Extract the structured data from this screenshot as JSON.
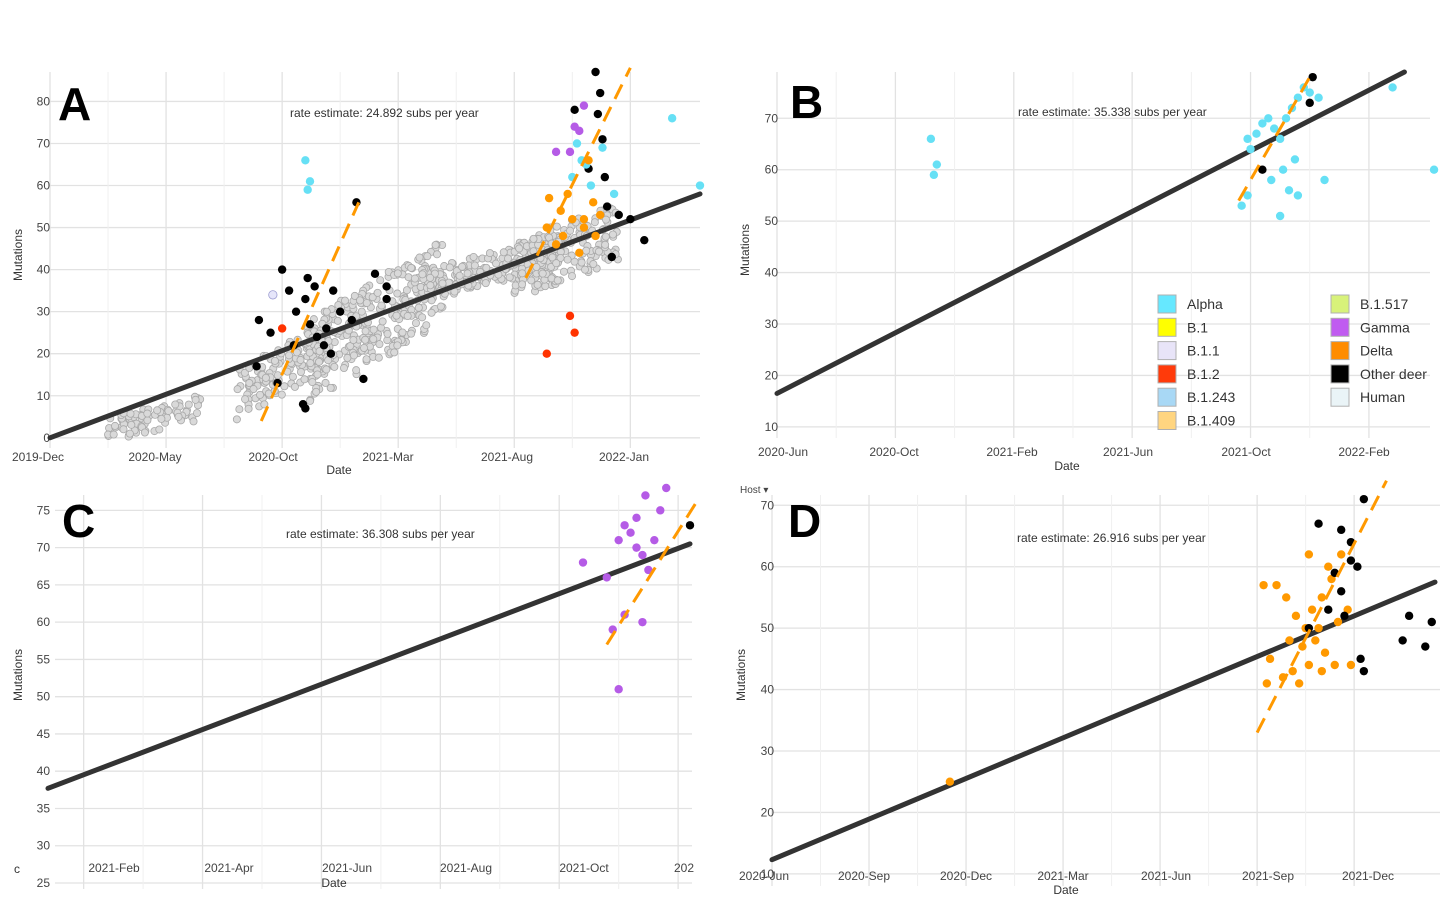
{
  "chart_data": [
    {
      "panel": "A",
      "type": "scatter",
      "xlabel": "Date",
      "ylabel": "Mutations",
      "rate_text": "rate estimate: 24.892 subs per year",
      "x_ticks": [
        "2019-Dec",
        "2020-May",
        "2020-Oct",
        "2021-Mar",
        "2021-Aug",
        "2022-Jan"
      ],
      "y_ticks": [
        0,
        10,
        20,
        30,
        40,
        50,
        60,
        70,
        80
      ],
      "xlim": [
        0,
        28
      ],
      "ylim": [
        -1,
        87
      ],
      "regression": {
        "from": [
          0,
          0
        ],
        "to": [
          28,
          58
        ]
      },
      "dashed_lines": [
        {
          "from": [
            9.1,
            4
          ],
          "to": [
            13.3,
            56
          ]
        },
        {
          "from": [
            20.5,
            38
          ],
          "to": [
            25.0,
            88
          ]
        }
      ],
      "human_cloud": {
        "color": "#d9d9d9",
        "stroke": "#a8a8a8"
      },
      "series": [
        {
          "name": "Other deer",
          "color": "#000000",
          "values": [
            [
              9.0,
              28
            ],
            [
              9.5,
              25
            ],
            [
              10,
              40
            ],
            [
              10.3,
              35
            ],
            [
              10.6,
              30
            ],
            [
              11,
              33
            ],
            [
              11.2,
              27
            ],
            [
              11.5,
              24
            ],
            [
              11.8,
              22
            ],
            [
              10.5,
              22
            ],
            [
              11.1,
              38
            ],
            [
              12.2,
              35
            ],
            [
              12.5,
              30
            ],
            [
              9.8,
              13
            ],
            [
              10.9,
              8
            ],
            [
              11,
              7
            ],
            [
              11.4,
              36
            ],
            [
              13,
              28
            ],
            [
              14,
              39
            ],
            [
              14.5,
              36
            ],
            [
              14.5,
              33
            ],
            [
              13.5,
              14
            ],
            [
              11.9,
              26
            ],
            [
              12.1,
              20
            ],
            [
              13.2,
              56
            ],
            [
              8.9,
              17
            ],
            [
              23.5,
              87
            ],
            [
              23.7,
              82
            ],
            [
              23.6,
              77
            ],
            [
              23.8,
              71
            ],
            [
              24.5,
              53
            ],
            [
              25,
              52
            ],
            [
              25.6,
              47
            ],
            [
              24.0,
              55
            ],
            [
              23.9,
              62
            ],
            [
              23.2,
              64
            ],
            [
              22.6,
              78
            ],
            [
              24.2,
              43
            ]
          ]
        },
        {
          "name": "Alpha",
          "color": "#66e0f5",
          "values": [
            [
              11,
              66
            ],
            [
              11.2,
              61
            ],
            [
              11.1,
              59
            ],
            [
              22.7,
              70
            ],
            [
              22.9,
              66
            ],
            [
              23.1,
              65
            ],
            [
              23.3,
              60
            ],
            [
              22.5,
              62
            ],
            [
              23.8,
              69
            ],
            [
              26.8,
              76
            ],
            [
              28,
              60
            ],
            [
              24.3,
              58
            ]
          ]
        },
        {
          "name": "Gamma",
          "color": "#b55be6",
          "values": [
            [
              22.6,
              74
            ],
            [
              22.8,
              73
            ],
            [
              22.4,
              68
            ],
            [
              23.0,
              79
            ],
            [
              21.8,
              68
            ]
          ]
        },
        {
          "name": "Delta",
          "color": "#ff9900",
          "values": [
            [
              21.5,
              57
            ],
            [
              22,
              54
            ],
            [
              22.5,
              52
            ],
            [
              23,
              50
            ],
            [
              23.5,
              48
            ],
            [
              22.3,
              58
            ],
            [
              21.8,
              46
            ],
            [
              22.8,
              44
            ],
            [
              23.4,
              56
            ],
            [
              23.2,
              66
            ],
            [
              22.1,
              48
            ],
            [
              23.0,
              52
            ],
            [
              21.4,
              50
            ],
            [
              23.7,
              53
            ]
          ]
        },
        {
          "name": "B.1.2",
          "color": "#ff3300",
          "values": [
            [
              22.4,
              29
            ],
            [
              22.6,
              25
            ],
            [
              21.4,
              20
            ],
            [
              10,
              26
            ]
          ]
        },
        {
          "name": "B.1.1",
          "color": "#e6e6fa",
          "values": [
            [
              9.6,
              34
            ]
          ]
        }
      ]
    },
    {
      "panel": "B",
      "type": "scatter",
      "xlabel": "Date",
      "ylabel": "Mutations",
      "rate_text": "rate estimate: 35.338 subs per year",
      "x_ticks": [
        "2020-Jun",
        "2020-Oct",
        "2021-Feb",
        "2021-Jun",
        "2021-Oct",
        "2022-Feb"
      ],
      "y_ticks": [
        10,
        20,
        30,
        40,
        50,
        60,
        70
      ],
      "xlim": [
        0,
        22.3
      ],
      "ylim": [
        9,
        79
      ],
      "regression": {
        "from": [
          0,
          16.5
        ],
        "to": [
          21.2,
          79
        ]
      },
      "dashed_lines": [
        {
          "from": [
            15.6,
            54
          ],
          "to": [
            18.0,
            78
          ]
        }
      ],
      "series": [
        {
          "name": "Alpha",
          "color": "#66e0f5",
          "values": [
            [
              5.2,
              66
            ],
            [
              5.4,
              61
            ],
            [
              5.3,
              59
            ],
            [
              15.9,
              66
            ],
            [
              16,
              64
            ],
            [
              16.2,
              67
            ],
            [
              16.4,
              69
            ],
            [
              16.6,
              70
            ],
            [
              16.8,
              68
            ],
            [
              17,
              66
            ],
            [
              17.2,
              70
            ],
            [
              17.4,
              72
            ],
            [
              17.6,
              74
            ],
            [
              17.8,
              76
            ],
            [
              18,
              75
            ],
            [
              17.5,
              62
            ],
            [
              17.1,
              60
            ],
            [
              16.7,
              58
            ],
            [
              17.3,
              56
            ],
            [
              17.6,
              55
            ],
            [
              15.9,
              55
            ],
            [
              15.7,
              53
            ],
            [
              17.0,
              51
            ],
            [
              18.5,
              58
            ],
            [
              20.8,
              76
            ],
            [
              22.2,
              60
            ],
            [
              18.3,
              74
            ]
          ]
        },
        {
          "name": "Other deer",
          "color": "#000000",
          "values": [
            [
              18.1,
              78
            ],
            [
              18.0,
              73
            ],
            [
              16.4,
              60
            ]
          ]
        }
      ],
      "legend": [
        {
          "label": "Alpha",
          "color": "#66e8ff"
        },
        {
          "label": "B.1",
          "color": "#ffff00"
        },
        {
          "label": "B.1.1",
          "color": "#e8e4f8"
        },
        {
          "label": "B.1.2",
          "color": "#ff3a0a"
        },
        {
          "label": "B.1.243",
          "color": "#a8d8f5"
        },
        {
          "label": "B.1.409",
          "color": "#ffd580"
        },
        {
          "label": "B.1.517",
          "color": "#d8f27a"
        },
        {
          "label": "Gamma",
          "color": "#c05cf0"
        },
        {
          "label": "Delta",
          "color": "#ff8c00"
        },
        {
          "label": "Other deer",
          "color": "#000000"
        },
        {
          "label": "Human",
          "color": "#eaf4f7"
        }
      ]
    },
    {
      "panel": "C",
      "type": "scatter",
      "xlabel": "Date",
      "ylabel": "Mutations",
      "rate_text": "rate estimate: 36.308 subs per year",
      "x_ticks": [
        "2021-Feb",
        "2021-Apr",
        "2021-Jun",
        "2021-Aug",
        "2021-Oct",
        "202"
      ],
      "y_ticks": [
        25,
        30,
        35,
        40,
        45,
        50,
        55,
        60,
        65,
        70,
        75
      ],
      "corner_label": "c",
      "xlim": [
        0,
        10.8
      ],
      "ylim": [
        25,
        78
      ],
      "regression": {
        "from": [
          0,
          37.7
        ],
        "to": [
          10.8,
          70.5
        ]
      },
      "dashed_lines": [
        {
          "from": [
            9.4,
            57
          ],
          "to": [
            10.9,
            76
          ]
        }
      ],
      "series": [
        {
          "name": "Gamma",
          "color": "#b55be6",
          "values": [
            [
              9.0,
              68
            ],
            [
              9.4,
              66
            ],
            [
              9.6,
              71
            ],
            [
              9.7,
              73
            ],
            [
              9.8,
              72
            ],
            [
              9.9,
              70
            ],
            [
              10.0,
              69
            ],
            [
              10.1,
              67
            ],
            [
              10.2,
              71
            ],
            [
              10.3,
              75
            ],
            [
              9.9,
              74
            ],
            [
              10.05,
              77
            ],
            [
              10.4,
              78
            ],
            [
              9.5,
              59
            ],
            [
              9.7,
              61
            ],
            [
              10.0,
              60
            ],
            [
              9.6,
              51
            ]
          ]
        },
        {
          "name": "Other deer",
          "color": "#000000",
          "values": [
            [
              10.8,
              73
            ]
          ]
        }
      ]
    },
    {
      "panel": "D",
      "type": "scatter",
      "xlabel": "Date",
      "ylabel": "Mutations",
      "rate_text": "rate estimate: 26.916 subs per year",
      "x_ticks": [
        "2020-Jun",
        "2020-Sep",
        "2020-Dec",
        "2021-Mar",
        "2021-Jun",
        "2021-Sep",
        "2021-Dec"
      ],
      "y_ticks": [
        10,
        20,
        30,
        40,
        50,
        60,
        70
      ],
      "xlim": [
        0,
        20.5
      ],
      "ylim": [
        9,
        72
      ],
      "regression": {
        "from": [
          0,
          12.3
        ],
        "to": [
          20.5,
          57.5
        ]
      },
      "dashed_lines": [
        {
          "from": [
            15.0,
            33
          ],
          "to": [
            19.0,
            74
          ]
        }
      ],
      "series": [
        {
          "name": "Delta",
          "color": "#ff9900",
          "values": [
            [
              5.5,
              25
            ],
            [
              15.2,
              57
            ],
            [
              15.6,
              57
            ],
            [
              15.9,
              55
            ],
            [
              16.2,
              52
            ],
            [
              16.5,
              50
            ],
            [
              16.8,
              48
            ],
            [
              17.1,
              46
            ],
            [
              17.4,
              44
            ],
            [
              15.4,
              45
            ],
            [
              15.8,
              42
            ],
            [
              16.1,
              43
            ],
            [
              16.4,
              47
            ],
            [
              16.7,
              53
            ],
            [
              17.0,
              55
            ],
            [
              17.3,
              58
            ],
            [
              17.6,
              62
            ],
            [
              17.2,
              60
            ],
            [
              16.9,
              50
            ],
            [
              16.6,
              44
            ],
            [
              16.3,
              41
            ],
            [
              17.5,
              51
            ],
            [
              17.8,
              53
            ],
            [
              16.0,
              48
            ],
            [
              15.3,
              41
            ],
            [
              17.9,
              44
            ],
            [
              16.6,
              62
            ],
            [
              17.0,
              43
            ]
          ]
        },
        {
          "name": "Other deer",
          "color": "#000000",
          "values": [
            [
              16.9,
              67
            ],
            [
              17.4,
              59
            ],
            [
              17.6,
              56
            ],
            [
              17.9,
              64
            ],
            [
              18.1,
              60
            ],
            [
              17.7,
              52
            ],
            [
              18.2,
              45
            ],
            [
              18.3,
              43
            ],
            [
              19.5,
              48
            ],
            [
              20.2,
              47
            ],
            [
              19.7,
              52
            ],
            [
              20.4,
              51
            ],
            [
              17.2,
              53
            ],
            [
              16.6,
              50
            ],
            [
              17.9,
              61
            ],
            [
              17.6,
              66
            ],
            [
              18.3,
              71
            ]
          ]
        }
      ]
    }
  ],
  "panel_letters": [
    "A",
    "B",
    "C",
    "D"
  ],
  "host_label": "Host ▾"
}
